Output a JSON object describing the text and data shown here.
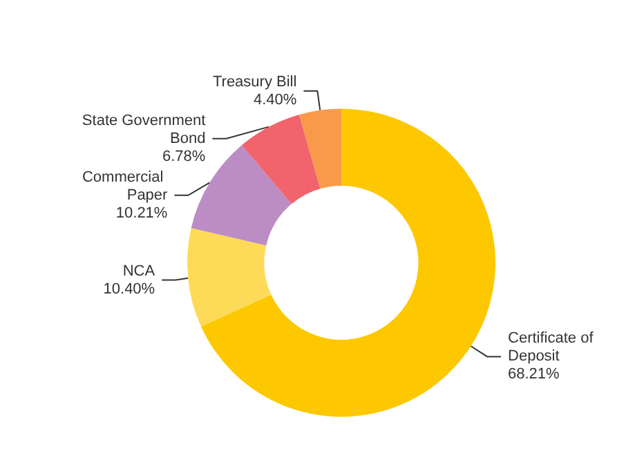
{
  "chart_data": {
    "type": "donut",
    "categories": [
      "Certificate of Deposit",
      "NCA",
      "Commercial Paper",
      "State Government Bond",
      "Treasury Bill"
    ],
    "values": [
      68.21,
      10.4,
      10.21,
      6.78,
      4.4
    ],
    "value_labels": [
      "68.21%",
      "10.40%",
      "10.21%",
      "6.78%",
      "4.40%"
    ],
    "colors": [
      "#fdc800",
      "#fddb58",
      "#bc8dc4",
      "#f1646c",
      "#f99a4b"
    ],
    "legend": false
  }
}
